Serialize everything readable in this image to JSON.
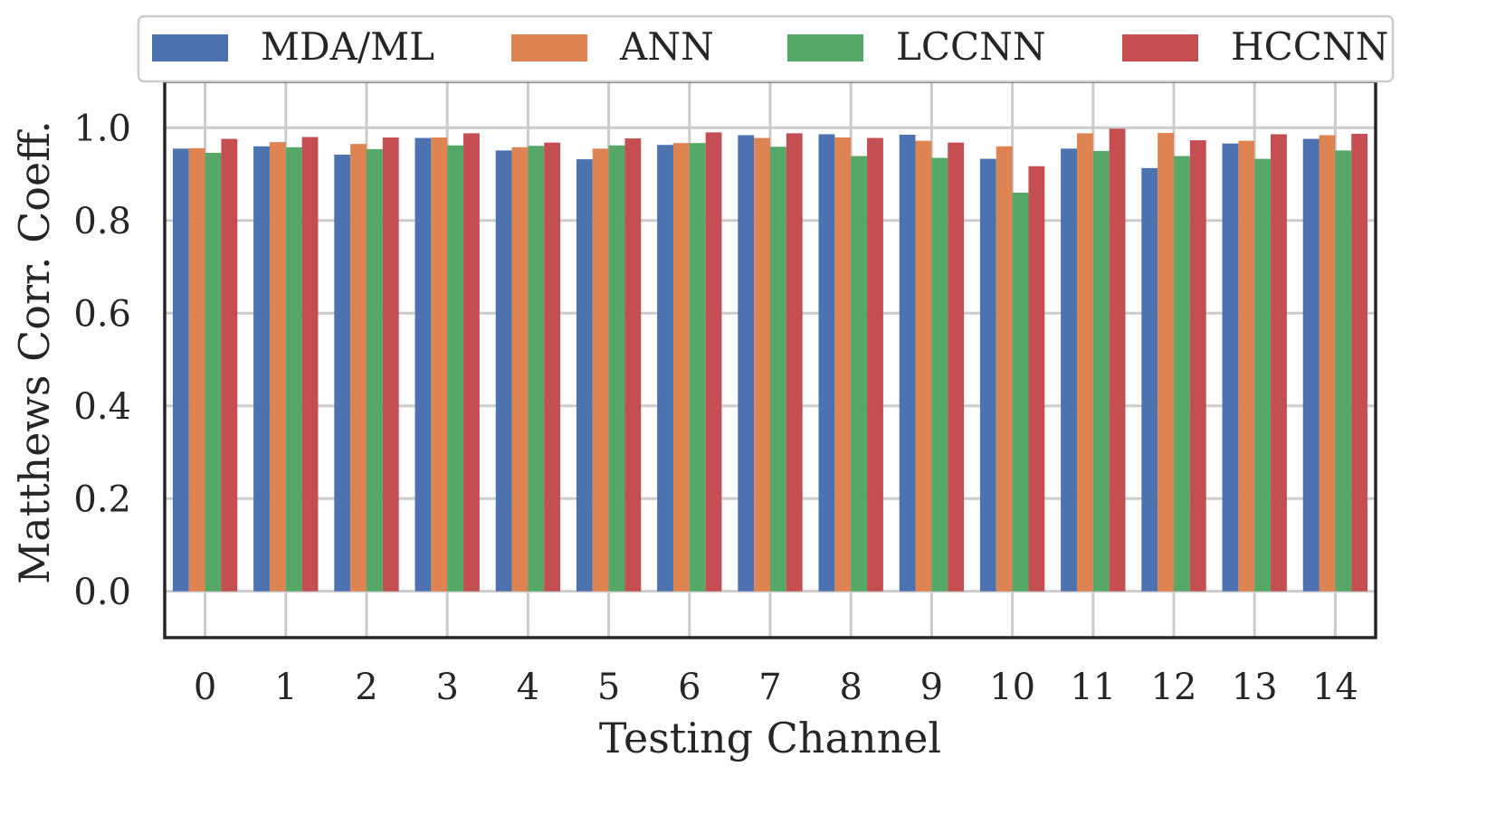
{
  "chart_data": {
    "type": "bar",
    "title": "",
    "xlabel": "Testing Channel",
    "ylabel": "Matthews Corr. Coeff.",
    "ylim": [
      -0.1,
      1.1
    ],
    "yticks": [
      0.0,
      0.2,
      0.4,
      0.6,
      0.8,
      1.0
    ],
    "ytick_labels": [
      "0.0",
      "0.2",
      "0.4",
      "0.6",
      "0.8",
      "1.0"
    ],
    "categories": [
      "0",
      "1",
      "2",
      "3",
      "4",
      "5",
      "6",
      "7",
      "8",
      "9",
      "10",
      "11",
      "12",
      "13",
      "14"
    ],
    "grid": true,
    "legend_position": "top",
    "series": [
      {
        "name": "MDA/ML",
        "color": "#4c72b0",
        "values": [
          0.955,
          0.96,
          0.942,
          0.978,
          0.951,
          0.932,
          0.963,
          0.984,
          0.986,
          0.985,
          0.933,
          0.955,
          0.913,
          0.966,
          0.976
        ]
      },
      {
        "name": "ANN",
        "color": "#dd8452",
        "values": [
          0.956,
          0.969,
          0.965,
          0.979,
          0.958,
          0.955,
          0.967,
          0.978,
          0.979,
          0.972,
          0.96,
          0.988,
          0.989,
          0.972,
          0.984
        ]
      },
      {
        "name": "LCCNN",
        "color": "#55a868",
        "values": [
          0.946,
          0.958,
          0.954,
          0.962,
          0.961,
          0.962,
          0.967,
          0.959,
          0.939,
          0.935,
          0.86,
          0.95,
          0.939,
          0.933,
          0.951
        ]
      },
      {
        "name": "HCCNN",
        "color": "#c44e52",
        "values": [
          0.976,
          0.98,
          0.979,
          0.988,
          0.968,
          0.977,
          0.99,
          0.988,
          0.978,
          0.968,
          0.917,
          0.998,
          0.973,
          0.986,
          0.987
        ]
      }
    ]
  }
}
